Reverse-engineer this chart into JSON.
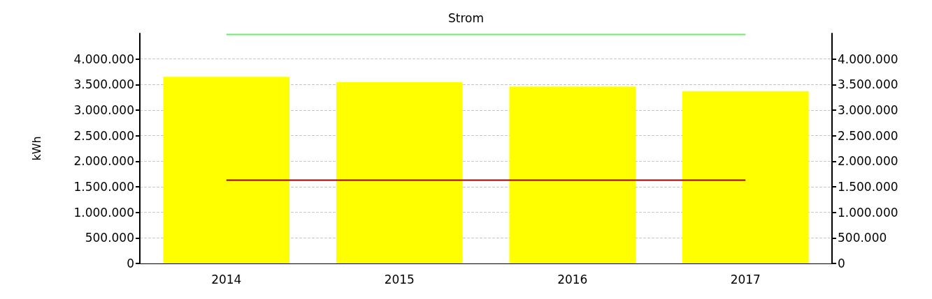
{
  "chart_data": {
    "type": "bar",
    "title": "Strom",
    "ylabel": "kWh",
    "categories": [
      "2014",
      "2015",
      "2016",
      "2017"
    ],
    "series": [
      {
        "color": "#ffff00",
        "values": [
          3650000,
          3550000,
          3460000,
          3370000
        ]
      },
      {
        "type": "line",
        "color": "#990000",
        "values": [
          1630000,
          1630000,
          1630000,
          1630000
        ]
      },
      {
        "type": "line",
        "color": "#66ee66",
        "values": [
          4480000,
          4480000,
          4480000,
          4480000
        ]
      }
    ],
    "ylim": [
      0,
      4500000
    ],
    "yticks": [
      {
        "value": 0,
        "label": "0"
      },
      {
        "value": 500000,
        "label": "500.000"
      },
      {
        "value": 1000000,
        "label": "1.000.000"
      },
      {
        "value": 1500000,
        "label": "1.500.000"
      },
      {
        "value": 2000000,
        "label": "2.000.000"
      },
      {
        "value": 2500000,
        "label": "2.500.000"
      },
      {
        "value": 3000000,
        "label": "3.000.000"
      },
      {
        "value": 3500000,
        "label": "3.500.000"
      },
      {
        "value": 4000000,
        "label": "4.000.000"
      }
    ],
    "y2lim": [
      0,
      4500000
    ],
    "y2ticks": [
      {
        "value": 0,
        "label": "0"
      },
      {
        "value": 500000,
        "label": "500.000"
      },
      {
        "value": 1000000,
        "label": "1.000.000"
      },
      {
        "value": 1500000,
        "label": "1.500.000"
      },
      {
        "value": 2000000,
        "label": "2.000.000"
      },
      {
        "value": 2500000,
        "label": "2.500.000"
      },
      {
        "value": 3000000,
        "label": "3.000.000"
      },
      {
        "value": 3500000,
        "label": "3.500.000"
      },
      {
        "value": 4000000,
        "label": "4.000.000"
      }
    ],
    "grid": "y",
    "marker": "none",
    "line_style": "solid"
  }
}
